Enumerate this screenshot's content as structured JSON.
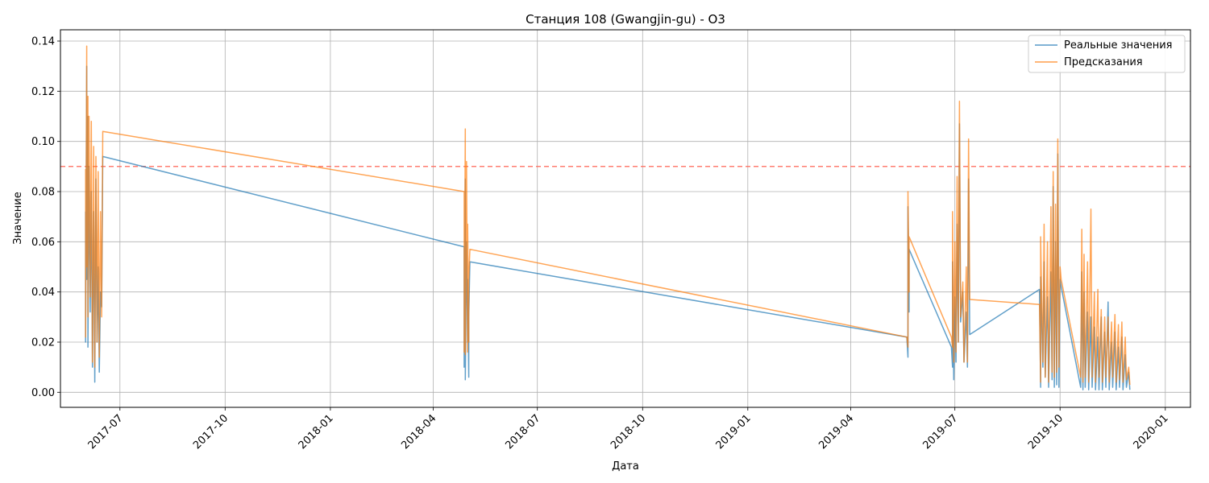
{
  "chart_data": {
    "type": "line",
    "title": "Станция 108 (Gwangjin-gu) - O3",
    "xlabel": "Дата",
    "ylabel": "Значение",
    "xlim": [
      "2017-05-10",
      "2020-01-23"
    ],
    "ylim": [
      -0.006,
      0.1445
    ],
    "grid": true,
    "legend_position": "top-right",
    "x_ticks": [
      "2017-07",
      "2017-10",
      "2018-01",
      "2018-04",
      "2018-07",
      "2018-10",
      "2019-01",
      "2019-04",
      "2019-07",
      "2019-10",
      "2020-01"
    ],
    "x_tick_dates": [
      "2017-07-01",
      "2017-10-01",
      "2018-01-01",
      "2018-04-01",
      "2018-07-01",
      "2018-10-01",
      "2019-01-01",
      "2019-04-01",
      "2019-07-01",
      "2019-10-01",
      "2020-01-01"
    ],
    "y_ticks": [
      0.0,
      0.02,
      0.04,
      0.06,
      0.08,
      0.1,
      0.12,
      0.14
    ],
    "y_tick_labels": [
      "0.00",
      "0.02",
      "0.04",
      "0.06",
      "0.08",
      "0.10",
      "0.12",
      "0.14"
    ],
    "threshold": {
      "value": 0.09,
      "color": "#ff6f61",
      "style": "dashed"
    },
    "series": [
      {
        "name": "Реальные значения",
        "color": "#1f77b4",
        "points": [
          [
            "2017-06-01",
            0.072
          ],
          [
            "2017-06-01",
            0.02
          ],
          [
            "2017-06-02",
            0.13
          ],
          [
            "2017-06-02",
            0.045
          ],
          [
            "2017-06-03",
            0.11
          ],
          [
            "2017-06-03",
            0.018
          ],
          [
            "2017-06-04",
            0.09
          ],
          [
            "2017-06-05",
            0.032
          ],
          [
            "2017-06-06",
            0.08
          ],
          [
            "2017-06-07",
            0.01
          ],
          [
            "2017-06-08",
            0.072
          ],
          [
            "2017-06-09",
            0.004
          ],
          [
            "2017-06-10",
            0.085
          ],
          [
            "2017-06-11",
            0.02
          ],
          [
            "2017-06-12",
            0.05
          ],
          [
            "2017-06-13",
            0.008
          ],
          [
            "2017-06-14",
            0.04
          ],
          [
            "2017-06-15",
            0.034
          ],
          [
            "2017-06-16",
            0.094
          ],
          [
            "2018-04-28",
            0.058
          ],
          [
            "2018-04-28",
            0.01
          ],
          [
            "2018-04-29",
            0.085
          ],
          [
            "2018-04-29",
            0.005
          ],
          [
            "2018-04-30",
            0.06
          ],
          [
            "2018-05-01",
            0.02
          ],
          [
            "2018-05-01",
            0.045
          ],
          [
            "2018-05-02",
            0.006
          ],
          [
            "2018-05-02",
            0.03
          ],
          [
            "2018-05-03",
            0.052
          ],
          [
            "2019-05-20",
            0.022
          ],
          [
            "2019-05-21",
            0.014
          ],
          [
            "2019-05-21",
            0.074
          ],
          [
            "2019-05-22",
            0.032
          ],
          [
            "2019-05-22",
            0.057
          ],
          [
            "2019-06-28",
            0.018
          ],
          [
            "2019-06-29",
            0.01
          ],
          [
            "2019-06-29",
            0.052
          ],
          [
            "2019-06-30",
            0.005
          ],
          [
            "2019-07-01",
            0.038
          ],
          [
            "2019-07-02",
            0.012
          ],
          [
            "2019-07-03",
            0.067
          ],
          [
            "2019-07-04",
            0.02
          ],
          [
            "2019-07-05",
            0.107
          ],
          [
            "2019-07-06",
            0.028
          ],
          [
            "2019-07-08",
            0.04
          ],
          [
            "2019-07-09",
            0.012
          ],
          [
            "2019-07-11",
            0.032
          ],
          [
            "2019-07-12",
            0.01
          ],
          [
            "2019-07-13",
            0.085
          ],
          [
            "2019-07-14",
            0.023
          ],
          [
            "2019-09-13",
            0.041
          ],
          [
            "2019-09-14",
            0.002
          ],
          [
            "2019-09-14",
            0.046
          ],
          [
            "2019-09-16",
            0.01
          ],
          [
            "2019-09-17",
            0.052
          ],
          [
            "2019-09-18",
            0.006
          ],
          [
            "2019-09-20",
            0.038
          ],
          [
            "2019-09-21",
            0.002
          ],
          [
            "2019-09-23",
            0.048
          ],
          [
            "2019-09-24",
            0.005
          ],
          [
            "2019-09-25",
            0.082
          ],
          [
            "2019-09-26",
            0.002
          ],
          [
            "2019-09-27",
            0.06
          ],
          [
            "2019-09-28",
            0.003
          ],
          [
            "2019-09-29",
            0.095
          ],
          [
            "2019-09-30",
            0.002
          ],
          [
            "2019-10-01",
            0.045
          ],
          [
            "2019-10-02",
            0.042
          ],
          [
            "2019-10-19",
            0.002
          ],
          [
            "2019-10-20",
            0.048
          ],
          [
            "2019-10-21",
            0.001
          ],
          [
            "2019-10-22",
            0.04
          ],
          [
            "2019-10-23",
            0.002
          ],
          [
            "2019-10-25",
            0.032
          ],
          [
            "2019-10-26",
            0.001
          ],
          [
            "2019-10-28",
            0.03
          ],
          [
            "2019-10-29",
            0.002
          ],
          [
            "2019-10-31",
            0.026
          ],
          [
            "2019-11-01",
            0.001
          ],
          [
            "2019-11-03",
            0.022
          ],
          [
            "2019-11-04",
            0.001
          ],
          [
            "2019-11-06",
            0.03
          ],
          [
            "2019-11-07",
            0.001
          ],
          [
            "2019-11-09",
            0.024
          ],
          [
            "2019-11-10",
            0.002
          ],
          [
            "2019-11-12",
            0.036
          ],
          [
            "2019-11-13",
            0.001
          ],
          [
            "2019-11-15",
            0.02
          ],
          [
            "2019-11-16",
            0.002
          ],
          [
            "2019-11-18",
            0.024
          ],
          [
            "2019-11-19",
            0.001
          ],
          [
            "2019-11-21",
            0.018
          ],
          [
            "2019-11-22",
            0.002
          ],
          [
            "2019-11-24",
            0.022
          ],
          [
            "2019-11-25",
            0.001
          ],
          [
            "2019-11-27",
            0.015
          ],
          [
            "2019-11-28",
            0.002
          ],
          [
            "2019-11-30",
            0.008
          ],
          [
            "2019-12-01",
            0.001
          ]
        ]
      },
      {
        "name": "Предсказания",
        "color": "#ff7f0e",
        "points": [
          [
            "2017-06-01",
            0.089
          ],
          [
            "2017-06-01",
            0.022
          ],
          [
            "2017-06-02",
            0.138
          ],
          [
            "2017-06-02",
            0.05
          ],
          [
            "2017-06-03",
            0.118
          ],
          [
            "2017-06-03",
            0.03
          ],
          [
            "2017-06-04",
            0.11
          ],
          [
            "2017-06-05",
            0.038
          ],
          [
            "2017-06-06",
            0.108
          ],
          [
            "2017-06-07",
            0.012
          ],
          [
            "2017-06-08",
            0.098
          ],
          [
            "2017-06-09",
            0.01
          ],
          [
            "2017-06-10",
            0.094
          ],
          [
            "2017-06-11",
            0.02
          ],
          [
            "2017-06-12",
            0.088
          ],
          [
            "2017-06-13",
            0.014
          ],
          [
            "2017-06-14",
            0.072
          ],
          [
            "2017-06-15",
            0.03
          ],
          [
            "2017-06-16",
            0.104
          ],
          [
            "2018-04-28",
            0.08
          ],
          [
            "2018-04-28",
            0.016
          ],
          [
            "2018-04-29",
            0.105
          ],
          [
            "2018-04-29",
            0.015
          ],
          [
            "2018-04-30",
            0.092
          ],
          [
            "2018-05-01",
            0.016
          ],
          [
            "2018-05-01",
            0.067
          ],
          [
            "2018-05-02",
            0.02
          ],
          [
            "2018-05-02",
            0.045
          ],
          [
            "2018-05-03",
            0.057
          ],
          [
            "2019-05-20",
            0.022
          ],
          [
            "2019-05-21",
            0.018
          ],
          [
            "2019-05-21",
            0.08
          ],
          [
            "2019-05-22",
            0.04
          ],
          [
            "2019-05-22",
            0.062
          ],
          [
            "2019-06-28",
            0.022
          ],
          [
            "2019-06-29",
            0.018
          ],
          [
            "2019-06-29",
            0.072
          ],
          [
            "2019-06-30",
            0.012
          ],
          [
            "2019-07-01",
            0.06
          ],
          [
            "2019-07-02",
            0.016
          ],
          [
            "2019-07-03",
            0.086
          ],
          [
            "2019-07-04",
            0.02
          ],
          [
            "2019-07-05",
            0.116
          ],
          [
            "2019-07-06",
            0.03
          ],
          [
            "2019-07-08",
            0.044
          ],
          [
            "2019-07-09",
            0.012
          ],
          [
            "2019-07-11",
            0.05
          ],
          [
            "2019-07-12",
            0.012
          ],
          [
            "2019-07-13",
            0.101
          ],
          [
            "2019-07-14",
            0.037
          ],
          [
            "2019-09-13",
            0.035
          ],
          [
            "2019-09-14",
            0.004
          ],
          [
            "2019-09-14",
            0.062
          ],
          [
            "2019-09-16",
            0.012
          ],
          [
            "2019-09-17",
            0.067
          ],
          [
            "2019-09-18",
            0.006
          ],
          [
            "2019-09-20",
            0.06
          ],
          [
            "2019-09-21",
            0.004
          ],
          [
            "2019-09-23",
            0.074
          ],
          [
            "2019-09-24",
            0.008
          ],
          [
            "2019-09-25",
            0.088
          ],
          [
            "2019-09-26",
            0.006
          ],
          [
            "2019-09-27",
            0.075
          ],
          [
            "2019-09-28",
            0.008
          ],
          [
            "2019-09-29",
            0.101
          ],
          [
            "2019-09-30",
            0.01
          ],
          [
            "2019-10-01",
            0.05
          ],
          [
            "2019-10-02",
            0.045
          ],
          [
            "2019-10-19",
            0.006
          ],
          [
            "2019-10-20",
            0.065
          ],
          [
            "2019-10-21",
            0.004
          ],
          [
            "2019-10-22",
            0.055
          ],
          [
            "2019-10-23",
            0.006
          ],
          [
            "2019-10-25",
            0.052
          ],
          [
            "2019-10-26",
            0.004
          ],
          [
            "2019-10-28",
            0.073
          ],
          [
            "2019-10-29",
            0.006
          ],
          [
            "2019-10-31",
            0.04
          ],
          [
            "2019-11-01",
            0.004
          ],
          [
            "2019-11-03",
            0.041
          ],
          [
            "2019-11-04",
            0.006
          ],
          [
            "2019-11-06",
            0.033
          ],
          [
            "2019-11-07",
            0.004
          ],
          [
            "2019-11-09",
            0.03
          ],
          [
            "2019-11-10",
            0.006
          ],
          [
            "2019-11-12",
            0.03
          ],
          [
            "2019-11-13",
            0.004
          ],
          [
            "2019-11-15",
            0.028
          ],
          [
            "2019-11-16",
            0.006
          ],
          [
            "2019-11-18",
            0.031
          ],
          [
            "2019-11-19",
            0.004
          ],
          [
            "2019-11-21",
            0.027
          ],
          [
            "2019-11-22",
            0.005
          ],
          [
            "2019-11-24",
            0.028
          ],
          [
            "2019-11-25",
            0.004
          ],
          [
            "2019-11-27",
            0.022
          ],
          [
            "2019-11-28",
            0.005
          ],
          [
            "2019-11-30",
            0.01
          ],
          [
            "2019-12-01",
            0.003
          ]
        ]
      }
    ]
  }
}
